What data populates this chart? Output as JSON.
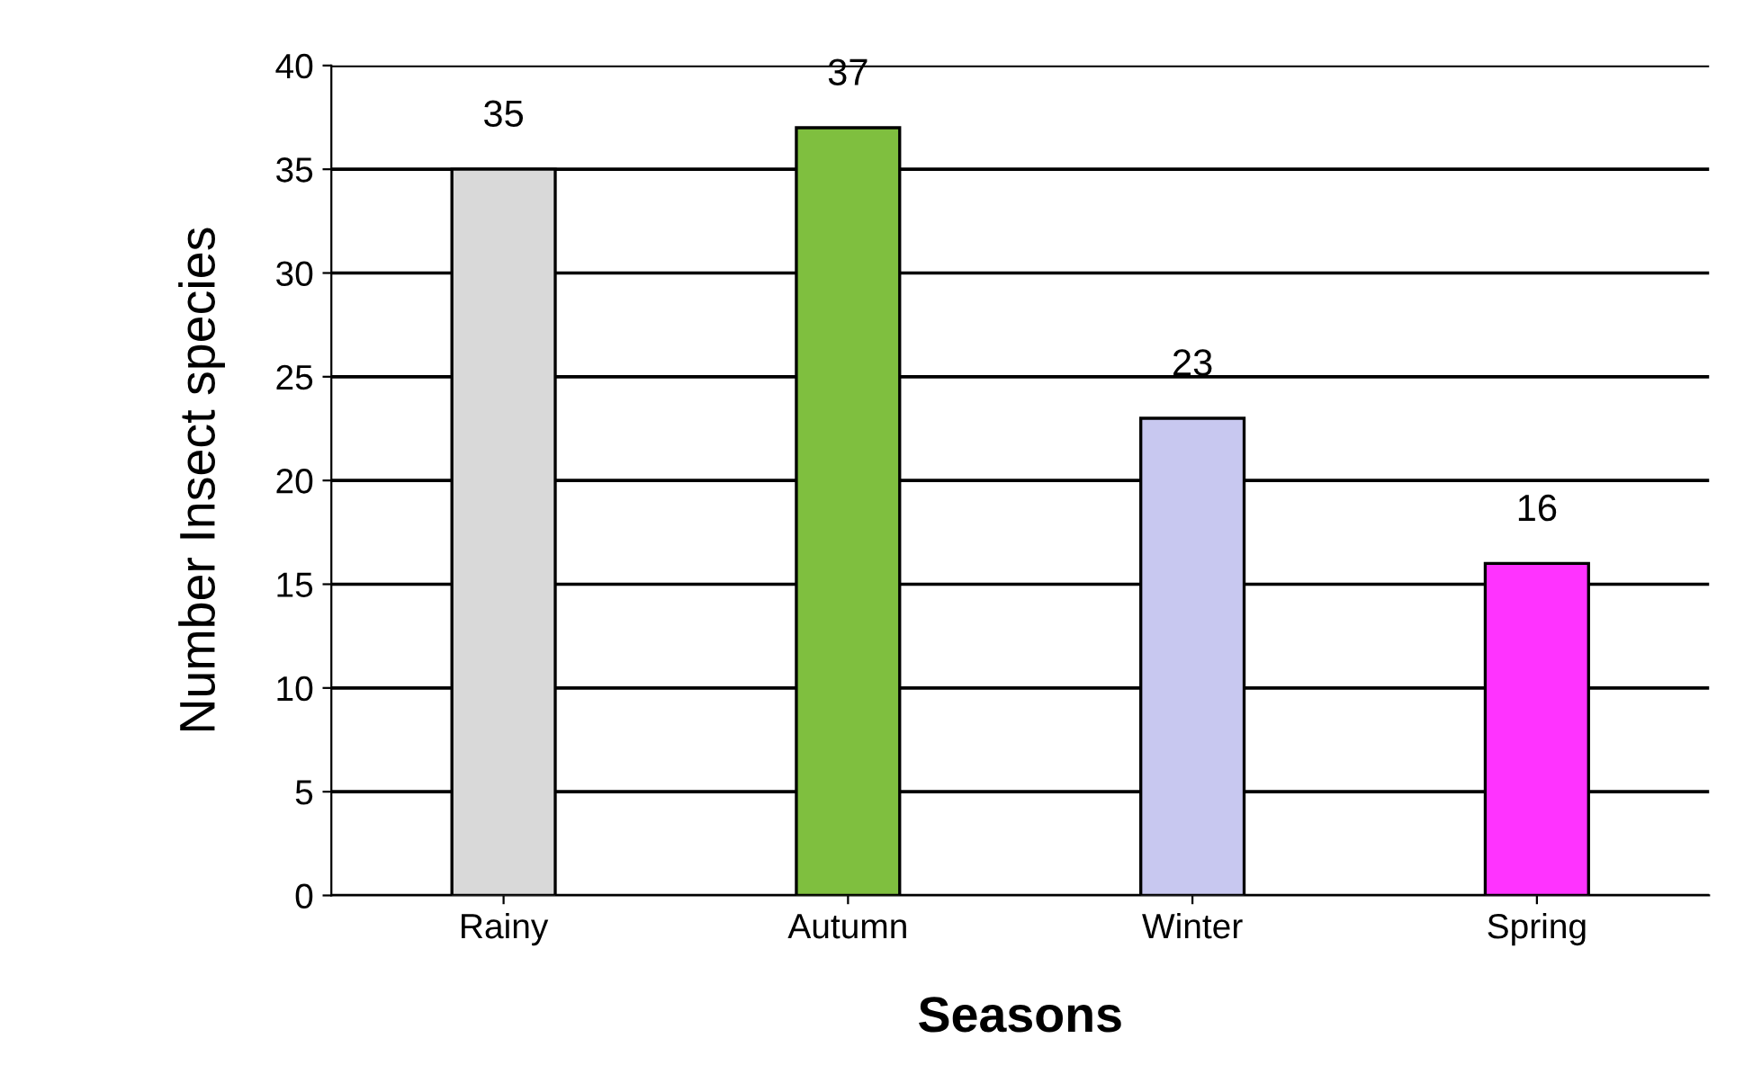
{
  "chart_data": {
    "type": "bar",
    "xlabel": "Seasons",
    "ylabel": "Number Insect species",
    "categories": [
      "Rainy",
      "Autumn",
      "Winter",
      "Spring"
    ],
    "values": [
      35,
      37,
      23,
      16
    ],
    "colors": [
      "#d9d9d9",
      "#7fbf3f",
      "#c8c8f0",
      "#ff33ff"
    ],
    "ylim": [
      0,
      40
    ],
    "yticks": [
      0,
      5,
      10,
      15,
      20,
      25,
      30,
      35,
      40
    ],
    "grid": "y",
    "data_labels": true
  }
}
